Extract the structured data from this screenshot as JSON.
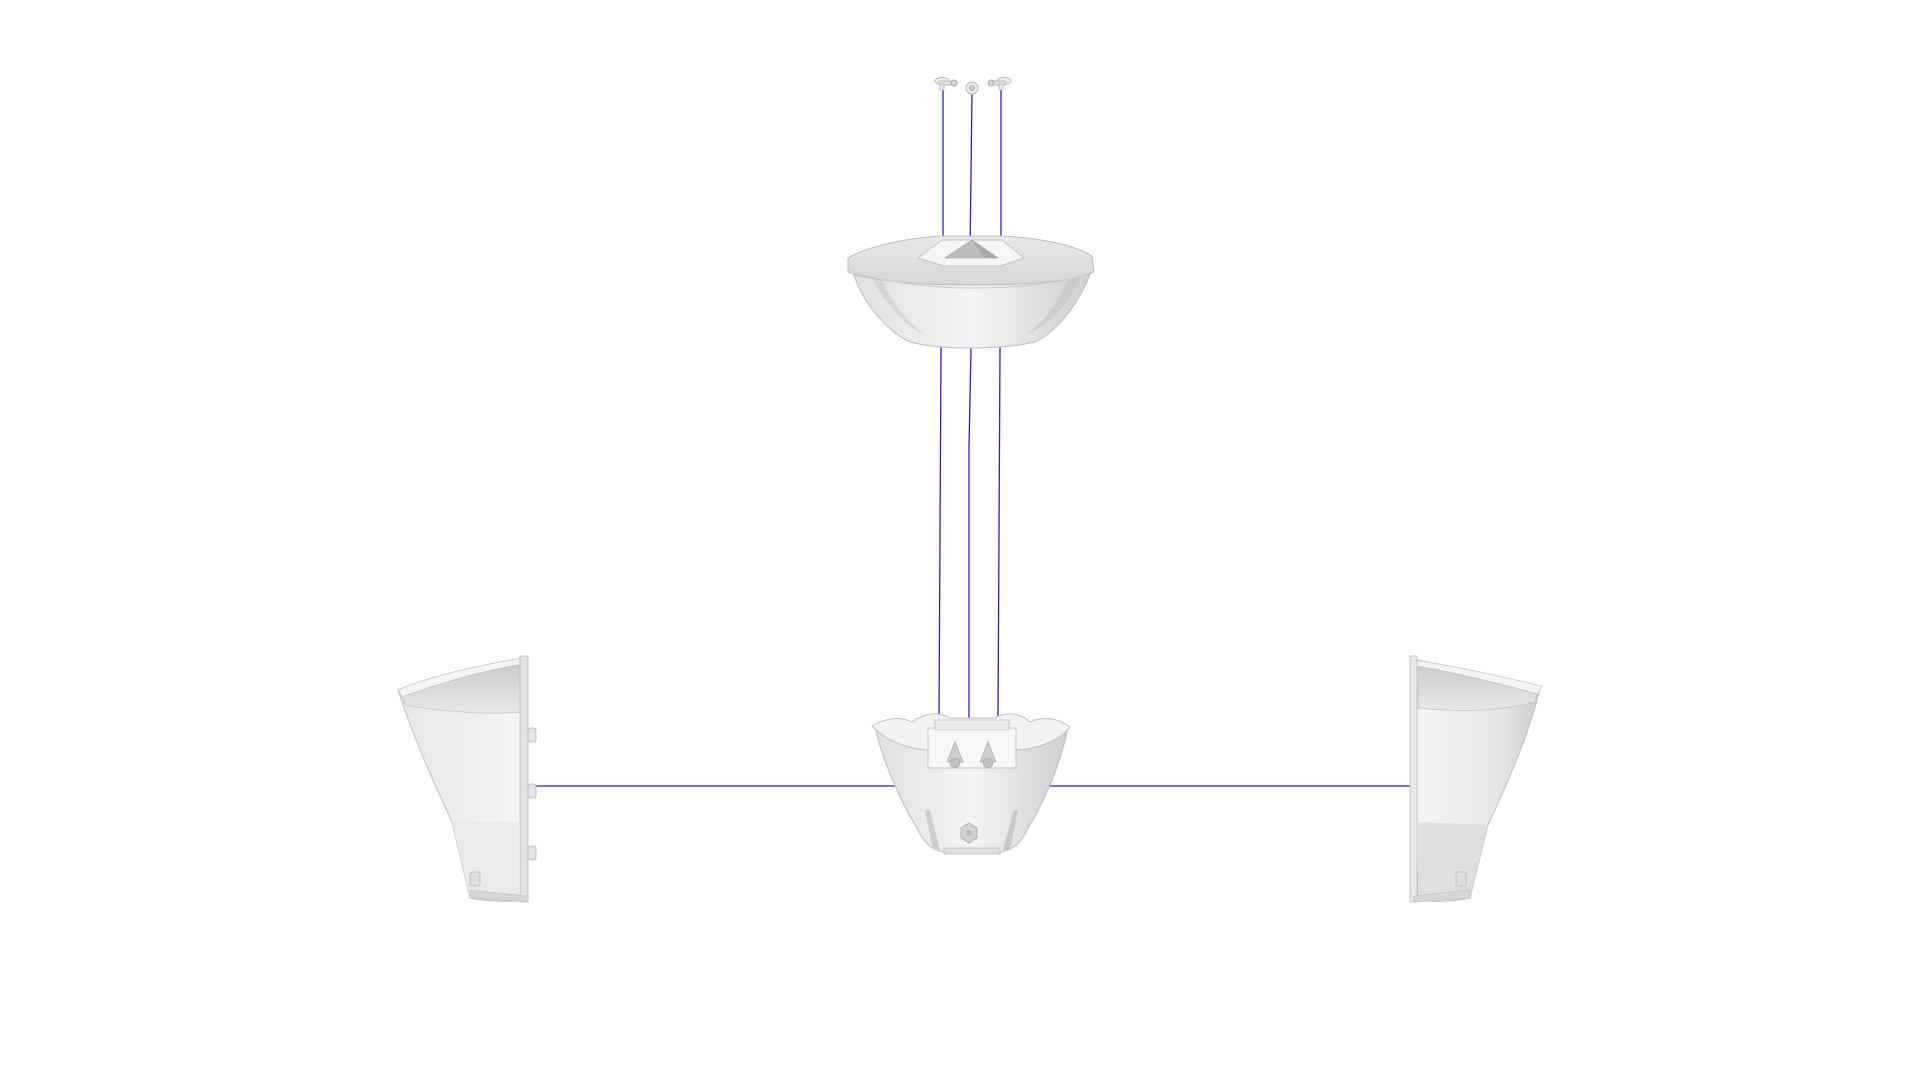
{
  "view": {
    "background_color": "#ffffff",
    "guide_line_color": "#2222dd",
    "part_fill_light": "#f0f0f0",
    "part_fill_mid": "#dcdcdc",
    "part_fill_dark": "#c4c4c4",
    "part_outline": "#b8b8b8"
  },
  "parts": [
    {
      "name": "top-fastener-left"
    },
    {
      "name": "top-fastener-center"
    },
    {
      "name": "top-fastener-right"
    },
    {
      "name": "upper-shell"
    },
    {
      "name": "center-hub"
    },
    {
      "name": "left-arm-shell"
    },
    {
      "name": "right-arm-shell"
    }
  ],
  "guides": [
    {
      "name": "explode-line-fastener-left"
    },
    {
      "name": "explode-line-fastener-center"
    },
    {
      "name": "explode-line-fastener-right"
    },
    {
      "name": "explode-line-left-arm"
    },
    {
      "name": "explode-line-right-arm"
    }
  ]
}
